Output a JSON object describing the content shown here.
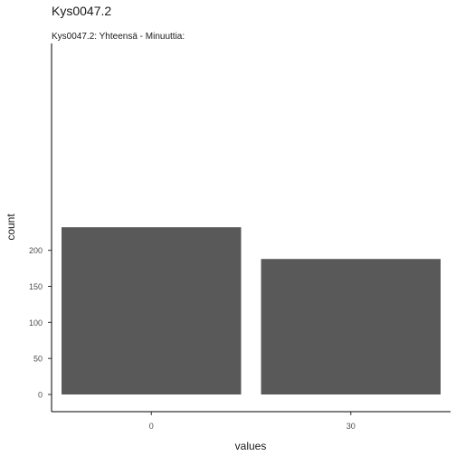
{
  "chart_data": {
    "type": "bar",
    "title": "Kys0047.2",
    "subtitle": "Kys0047.2: Yhteensä - Minuuttia:",
    "xlabel": "values",
    "ylabel": "count",
    "categories": [
      "0",
      "30"
    ],
    "values": [
      232,
      188
    ],
    "ylim": [
      0,
      240
    ],
    "yticks": [
      0,
      50,
      100,
      150,
      200
    ],
    "bar_color": "#595959",
    "grid": false,
    "legend": false
  }
}
